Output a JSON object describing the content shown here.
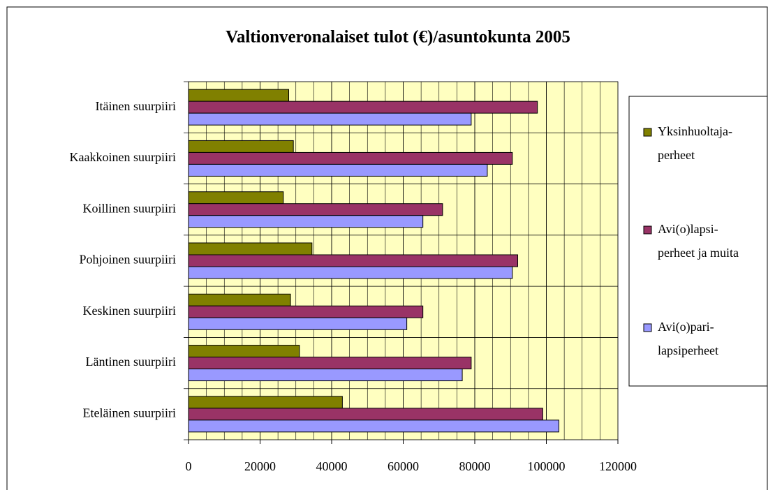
{
  "chart_data": {
    "type": "barh",
    "title": "Valtionveronalaiset tulot (€)/asuntokunta 2005",
    "categories": [
      "Itäinen suurpiiri",
      "Kaakkoinen suurpiiri",
      "Koillinen suurpiiri",
      "Pohjoinen suurpiiri",
      "Keskinen suurpiiri",
      "Läntinen suurpiiri",
      "Eteläinen suurpiiri"
    ],
    "series": [
      {
        "name": "Yksinhuoltaja-\nperheet",
        "color": "#808000",
        "values": [
          28000,
          29300,
          26500,
          34500,
          28500,
          31000,
          43000
        ]
      },
      {
        "name": "Avi(o)lapsi-\nperheet ja muita",
        "color": "#993366",
        "values": [
          97500,
          90500,
          71000,
          92000,
          65500,
          79000,
          99000
        ]
      },
      {
        "name": "Avi(o)pari-\nlapsiperheet",
        "color": "#9999ff",
        "values": [
          79000,
          83500,
          65500,
          90500,
          61000,
          76500,
          103500
        ]
      }
    ],
    "xlim": [
      0,
      120000
    ],
    "xticks": [
      0,
      20000,
      40000,
      60000,
      80000,
      100000,
      120000
    ],
    "x_minor_step": 5000,
    "grid": true,
    "plot_background": "#ffffc0",
    "legend": "right"
  }
}
